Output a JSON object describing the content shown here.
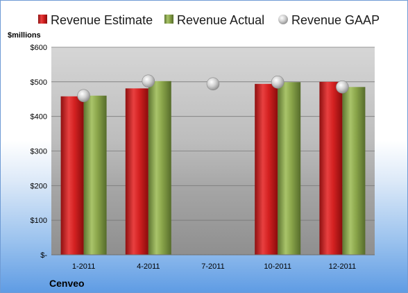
{
  "chart_data": {
    "type": "bar",
    "ylabel": "$millions",
    "company": "Cenveo",
    "categories": [
      "1-2011",
      "4-2011",
      "7-2011",
      "10-2011",
      "12-2011"
    ],
    "ylim": [
      0,
      600
    ],
    "yticks": [
      0,
      100,
      200,
      300,
      400,
      500,
      600
    ],
    "yticklabels": [
      "$-",
      "$100",
      "$200",
      "$300",
      "$400",
      "$500",
      "$600"
    ],
    "grid": true,
    "legend_position": "top",
    "series": [
      {
        "name": "Revenue Estimate",
        "kind": "bar",
        "color": "#d42121",
        "values": [
          458,
          481,
          null,
          494,
          500
        ]
      },
      {
        "name": "Revenue Actual",
        "kind": "bar",
        "color": "#8aa54a",
        "values": [
          460,
          502,
          null,
          499,
          485
        ]
      },
      {
        "name": "Revenue GAAP",
        "kind": "marker",
        "color": "#c8c8c8",
        "values": [
          460,
          502,
          494,
          499,
          485
        ]
      }
    ]
  }
}
